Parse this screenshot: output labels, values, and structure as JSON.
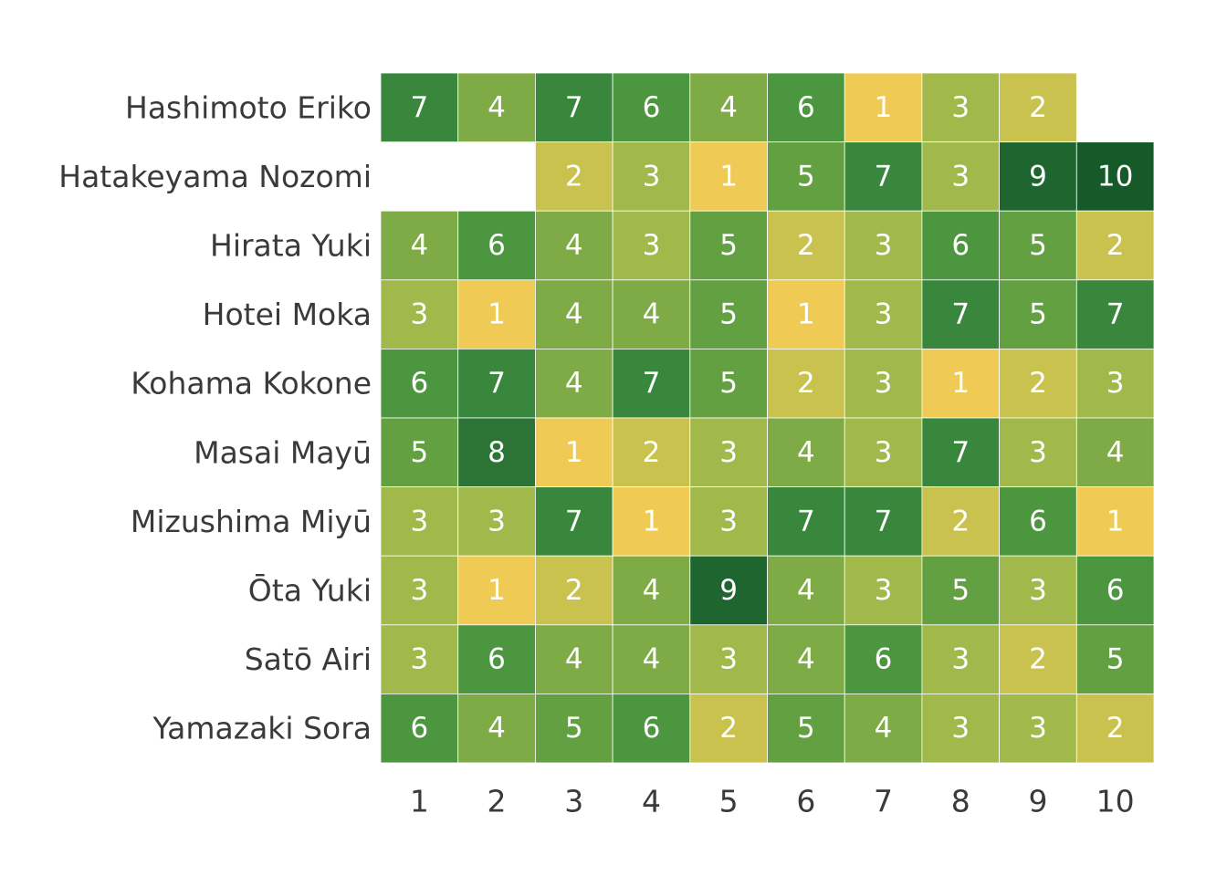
{
  "chart_data": {
    "type": "heatmap",
    "title": "",
    "xlabel": "",
    "ylabel": "",
    "columns": [
      "1",
      "2",
      "3",
      "4",
      "5",
      "6",
      "7",
      "8",
      "9",
      "10"
    ],
    "rows": [
      "Hashimoto Eriko",
      "Hatakeyama Nozomi",
      "Hirata Yuki",
      "Hotei Moka",
      "Kohama Kokone",
      "Masai Mayū",
      "Mizushima Miyū",
      "Ōta Yuki",
      "Satō Airi",
      "Yamazaki Sora"
    ],
    "values": [
      [
        7,
        4,
        7,
        6,
        4,
        6,
        1,
        3,
        2,
        null
      ],
      [
        null,
        null,
        2,
        3,
        1,
        5,
        7,
        3,
        9,
        10
      ],
      [
        4,
        6,
        4,
        3,
        5,
        2,
        3,
        6,
        5,
        2
      ],
      [
        3,
        1,
        4,
        4,
        5,
        1,
        3,
        7,
        5,
        7
      ],
      [
        6,
        7,
        4,
        7,
        5,
        2,
        3,
        1,
        2,
        3
      ],
      [
        5,
        8,
        1,
        2,
        3,
        4,
        3,
        7,
        3,
        4
      ],
      [
        3,
        3,
        7,
        1,
        3,
        7,
        7,
        2,
        6,
        1
      ],
      [
        3,
        1,
        2,
        4,
        9,
        4,
        3,
        5,
        3,
        6
      ],
      [
        3,
        6,
        4,
        4,
        3,
        4,
        6,
        3,
        2,
        5
      ],
      [
        6,
        4,
        5,
        6,
        2,
        5,
        4,
        3,
        3,
        2
      ]
    ],
    "color_scale": {
      "1": "#efcb56",
      "2": "#c9c24e",
      "3": "#a1b84b",
      "4": "#7eab45",
      "5": "#62a041",
      "6": "#4c963f",
      "7": "#38873d",
      "8": "#2b7436",
      "9": "#1f6530",
      "10": "#175a29"
    },
    "grid": false,
    "legend": "none"
  }
}
